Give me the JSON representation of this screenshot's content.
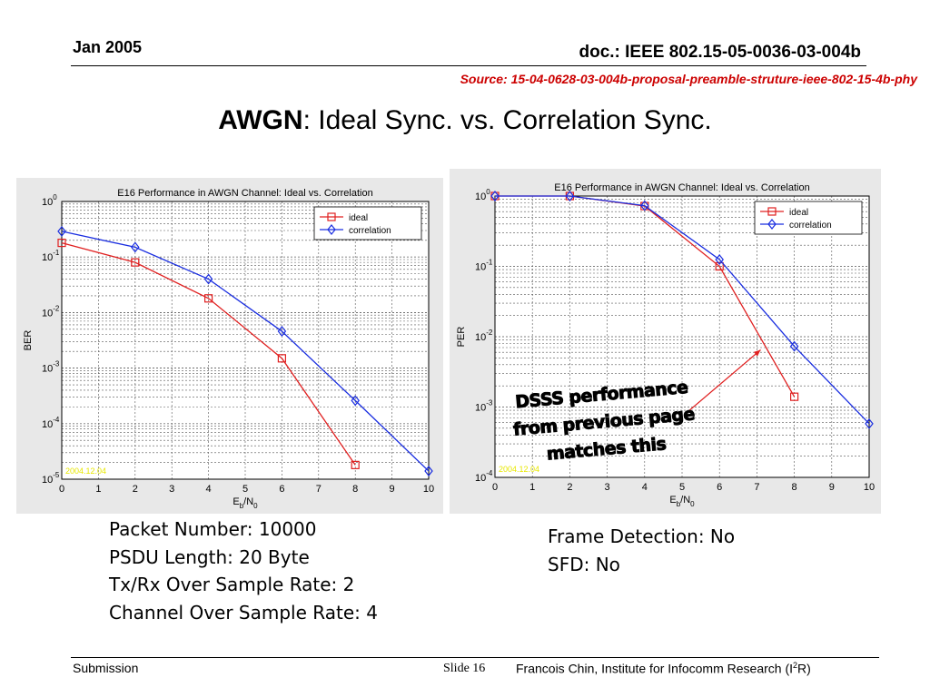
{
  "header": {
    "date": "Jan 2005",
    "doc": "doc.: IEEE 802.15-05-0036-03-004b",
    "source": "Source: 15-04-0628-03-004b-proposal-preamble-struture-ieee-802-15-4b-phy"
  },
  "title": {
    "bold": "AWGN",
    "rest": ": Ideal Sync. vs. Correlation Sync."
  },
  "left_params": [
    "Packet Number: 10000",
    "PSDU Length: 20 Byte",
    "Tx/Rx Over Sample Rate: 2",
    "Channel Over Sample Rate: 4"
  ],
  "right_params": [
    "Frame Detection: No",
    "SFD: No"
  ],
  "callout": [
    "DSSS performance",
    "from previous page",
    "matches this"
  ],
  "footer": {
    "left": "Submission",
    "slide": "Slide 16",
    "right_main": "Francois Chin, Institute for Infocomm Research (I",
    "right_sup": "2",
    "right_end": "R)"
  },
  "colors": {
    "ideal": "#e02020",
    "correlation": "#1a2ee0",
    "source": "#cc0000",
    "stamp": "#e8e800"
  },
  "chart_data": [
    {
      "type": "line",
      "title": "E16 Performance in AWGN Channel: Ideal vs. Correlation",
      "xlabel_main": "E",
      "xlabel_sub1": "b",
      "xlabel_mid": "/N",
      "xlabel_sub2": "0",
      "ylabel": "BER",
      "xlim": [
        0,
        10
      ],
      "ylim": [
        1e-05,
        1
      ],
      "yscale": "log",
      "xticks": [
        "0",
        "1",
        "2",
        "3",
        "4",
        "5",
        "6",
        "7",
        "8",
        "9",
        "10"
      ],
      "yticks": [
        "10^0",
        "10^-1",
        "10^-2",
        "10^-3",
        "10^-4",
        "10^-5"
      ],
      "grid": true,
      "legend_position": "top-right",
      "stamp": "2004.12.04",
      "series": [
        {
          "name": "ideal",
          "marker": "square",
          "x": [
            0,
            2,
            4,
            6,
            8
          ],
          "y": [
            0.18,
            0.08,
            0.018,
            0.0015,
            1.8e-05
          ]
        },
        {
          "name": "correlation",
          "marker": "diamond",
          "x": [
            0,
            2,
            4,
            6,
            8,
            10
          ],
          "y": [
            0.29,
            0.15,
            0.04,
            0.0046,
            0.00026,
            1.4e-05
          ]
        }
      ],
      "annotation_arrow": null
    },
    {
      "type": "line",
      "title": "E16 Performance in AWGN Channel: Ideal vs. Correlation",
      "xlabel_main": "E",
      "xlabel_sub1": "b",
      "xlabel_mid": "/N",
      "xlabel_sub2": "0",
      "ylabel": "PER",
      "xlim": [
        0,
        10
      ],
      "ylim": [
        0.0001,
        1
      ],
      "yscale": "log",
      "xticks": [
        "0",
        "1",
        "2",
        "3",
        "4",
        "5",
        "6",
        "7",
        "8",
        "9",
        "10"
      ],
      "yticks": [
        "10^0",
        "10^-1",
        "10^-2",
        "10^-3",
        "10^-4"
      ],
      "grid": true,
      "legend_position": "top-right",
      "stamp": "2004.12.04",
      "series": [
        {
          "name": "ideal",
          "marker": "square",
          "x": [
            0,
            2,
            4,
            6,
            8
          ],
          "y": [
            1.0,
            1.0,
            0.72,
            0.1,
            0.0014
          ]
        },
        {
          "name": "correlation",
          "marker": "diamond",
          "x": [
            0,
            2,
            4,
            6,
            8,
            10
          ],
          "y": [
            1.0,
            1.0,
            0.73,
            0.125,
            0.0073,
            0.00058
          ]
        }
      ],
      "annotation_arrow": {
        "from": [
          5.2,
          0.0009
        ],
        "to": [
          7.1,
          0.0065
        ]
      }
    }
  ]
}
